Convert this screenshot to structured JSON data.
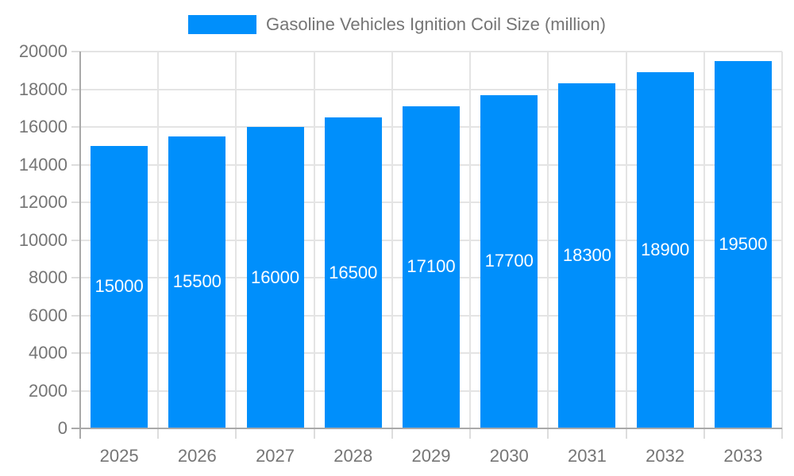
{
  "legend": {
    "label": "Gasoline Vehicles Ignition Coil Size (million)"
  },
  "chart_data": {
    "type": "bar",
    "title": "Gasoline Vehicles Ignition Coil Size (million)",
    "categories": [
      "2025",
      "2026",
      "2027",
      "2028",
      "2029",
      "2030",
      "2031",
      "2032",
      "2033"
    ],
    "values": [
      15000,
      15500,
      16000,
      16500,
      17100,
      17700,
      18300,
      18900,
      19500
    ],
    "bar_labels": [
      "15000",
      "15500",
      "16000",
      "16500",
      "17100",
      "17700",
      "18300",
      "18900",
      "19500"
    ],
    "xlabel": "",
    "ylabel": "",
    "ylim": [
      0,
      20000
    ],
    "ytick_step": 2000,
    "ytick_labels": [
      "0",
      "2000",
      "4000",
      "6000",
      "8000",
      "10000",
      "12000",
      "14000",
      "16000",
      "18000",
      "20000"
    ],
    "grid": true,
    "legend_position": "top",
    "colors": {
      "bar": "#008FFB",
      "bar_label_text": "#ffffff",
      "axis_text": "#757575",
      "legend_text": "#757575",
      "gridline": "#e4e4e4",
      "axis_line": "#a9a9a9",
      "tick": "#dddddd",
      "background": "#ffffff"
    }
  }
}
